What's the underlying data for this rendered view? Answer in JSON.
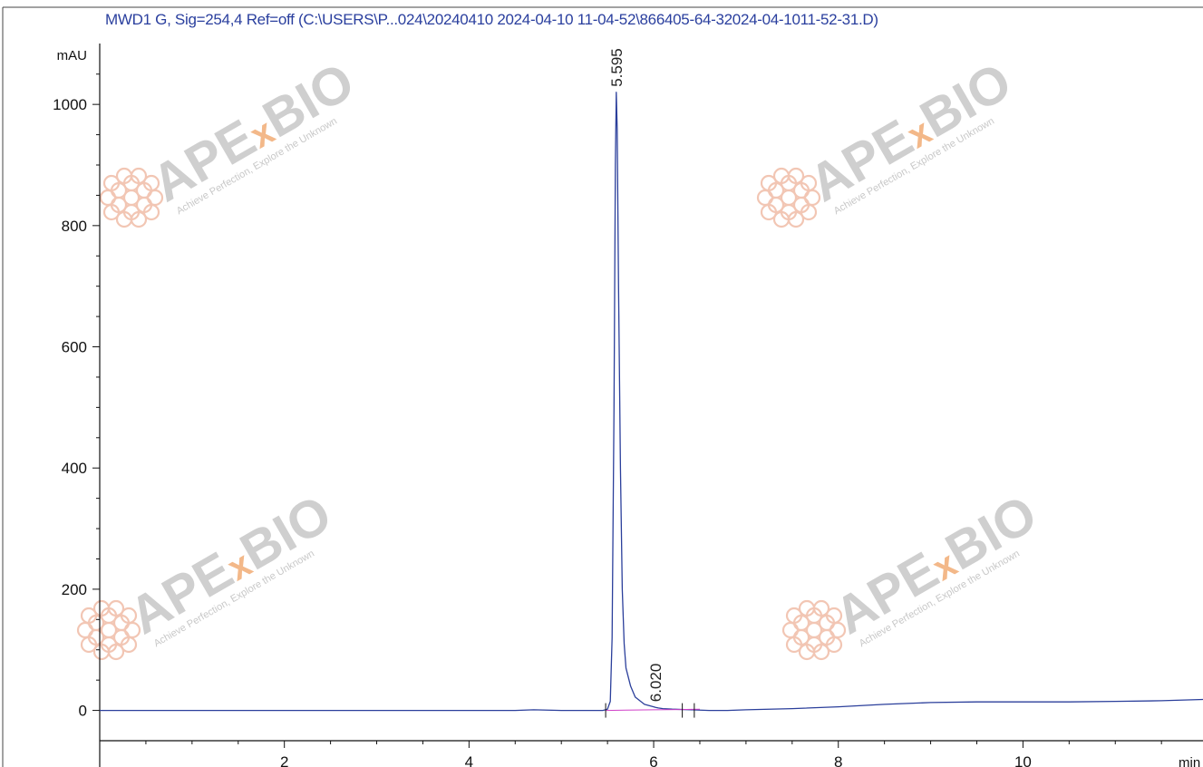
{
  "chart_data": {
    "type": "line",
    "title": "MWD1 G, Sig=254,4 Ref=off (C:\\USERS\\P...024\\20240410 2024-04-10 11-04-52\\866405-64-32024-04-1011-52-31.D)",
    "ylabel": "mAU",
    "xlabel": "min",
    "xlim": [
      0,
      11.95
    ],
    "ylim": [
      -50,
      1090
    ],
    "x_ticks": [
      2,
      4,
      6,
      8,
      10
    ],
    "x_tick_labels": [
      "2",
      "4",
      "6",
      "8",
      "10"
    ],
    "y_ticks": [
      0,
      200,
      400,
      600,
      800,
      1000
    ],
    "y_tick_labels": [
      "0",
      "200",
      "400",
      "600",
      "800",
      "1000"
    ],
    "series": [
      {
        "color": "#2b3f9b",
        "x": [
          0,
          1,
          2,
          3,
          4,
          4.5,
          4.7,
          5.0,
          5.3,
          5.45,
          5.5,
          5.53,
          5.55,
          5.57,
          5.585,
          5.595,
          5.605,
          5.62,
          5.64,
          5.66,
          5.68,
          5.7,
          5.75,
          5.8,
          5.9,
          6.0,
          6.02,
          6.05,
          6.1,
          6.2,
          6.4,
          6.6,
          6.8,
          7.0,
          7.5,
          8.0,
          8.5,
          9.0,
          9.5,
          10.0,
          10.5,
          11.0,
          11.5,
          11.95
        ],
        "y": [
          0,
          0,
          0,
          0,
          0,
          0,
          1,
          0,
          0,
          0,
          2,
          15,
          120,
          500,
          900,
          1020,
          960,
          700,
          400,
          200,
          110,
          70,
          40,
          22,
          10,
          6,
          5,
          4,
          3,
          2,
          1,
          0,
          0,
          1,
          3,
          6,
          10,
          13,
          14,
          14,
          14,
          15,
          16,
          18
        ]
      },
      {
        "color": "#d040c8",
        "x": [
          5.48,
          5.7,
          6.0,
          6.3,
          6.5
        ],
        "y": [
          0,
          0.5,
          1,
          1.5,
          2
        ]
      }
    ],
    "peaks": [
      {
        "rt": 5.595,
        "label": "5.595",
        "height": 1020
      },
      {
        "rt": 6.02,
        "label": "6.020",
        "height": 5
      }
    ],
    "integration_marks": [
      5.48,
      6.31,
      6.44
    ]
  },
  "watermark": {
    "brand_prefix": "APE",
    "brand_x": "x",
    "brand_suffix": "BIO",
    "tagline": "Achieve Perfection, Explore the Unknown",
    "brand_color": "#cfcfcf",
    "x_color": "#f3b889",
    "emblem_color": "#f2c6b4"
  },
  "colors": {
    "title": "#2a3f9e",
    "axis": "#111111",
    "trace": "#2b3f9b",
    "baseline": "#d040c8"
  }
}
